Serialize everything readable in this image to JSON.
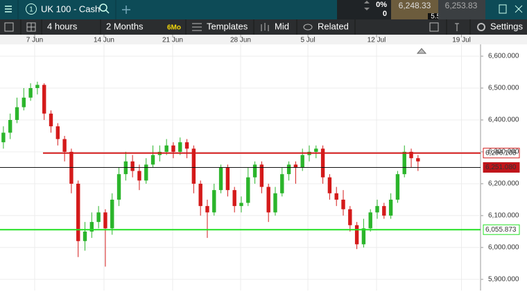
{
  "header": {
    "badge": "1",
    "instrument": "UK 100 - Cash",
    "change": "0%",
    "change_points": "0",
    "sell": "6,248.33",
    "spread": "5.50",
    "buy": "6,253.83"
  },
  "toolbar": {
    "interval": "4 hours",
    "range": "2 Months",
    "range_badge": "6Mo",
    "templates": "Templates",
    "price_type": "Mid",
    "related": "Related",
    "settings": "Settings"
  },
  "chart_data": {
    "type": "candlestick",
    "up_color": "#2bb52b",
    "down_color": "#d41a1a",
    "grid": true,
    "xlim": [
      -0.5,
      70.2
    ],
    "xticks": [
      {
        "value": 4.6,
        "label": "7 Jun"
      },
      {
        "value": 14.8,
        "label": "14 Jun"
      },
      {
        "value": 24.9,
        "label": "21 Jun"
      },
      {
        "value": 34.9,
        "label": "28 Jun"
      },
      {
        "value": 44.8,
        "label": "5 Jul"
      },
      {
        "value": 54.9,
        "label": "12 Jul"
      },
      {
        "value": 67.4,
        "label": "19 Jul"
      }
    ],
    "ylim": [
      5865,
      6637
    ],
    "yticks": [
      {
        "value": 5900,
        "label": "5,900.000"
      },
      {
        "value": 6000,
        "label": "6,000.000"
      },
      {
        "value": 6100,
        "label": "6,100.000"
      },
      {
        "value": 6200,
        "label": "6,200.000"
      },
      {
        "value": 6300,
        "label": "6,300.000"
      },
      {
        "value": 6400,
        "label": "6,400.000"
      },
      {
        "value": 6500,
        "label": "6,500.000"
      },
      {
        "value": 6600,
        "label": "6,600.000"
      }
    ],
    "open": [
      6330,
      6360,
      6400,
      6440,
      6470,
      6500,
      6510,
      6420,
      6380,
      6340,
      6300,
      6200,
      6020,
      6050,
      6080,
      6110,
      6060,
      6150,
      6230,
      6270,
      6240,
      6210,
      6260,
      6290,
      6300,
      6320,
      6300,
      6330,
      6310,
      6200,
      6130,
      6110,
      6180,
      6250,
      6180,
      6130,
      6140,
      6220,
      6260,
      6190,
      6110,
      6170,
      6230,
      6260,
      6250,
      6290,
      6300,
      6310,
      6220,
      6170,
      6150,
      6120,
      6070,
      6010,
      6060,
      6110,
      6130,
      6100,
      6150,
      6230,
      6300,
      6280
    ],
    "high": [
      6380,
      6420,
      6470,
      6500,
      6515,
      6520,
      6515,
      6430,
      6390,
      6350,
      6310,
      6210,
      6080,
      6110,
      6130,
      6120,
      6170,
      6250,
      6300,
      6290,
      6260,
      6280,
      6320,
      6320,
      6340,
      6330,
      6345,
      6340,
      6320,
      6210,
      6150,
      6200,
      6260,
      6260,
      6190,
      6160,
      6250,
      6270,
      6270,
      6200,
      6190,
      6250,
      6270,
      6270,
      6310,
      6320,
      6320,
      6320,
      6230,
      6190,
      6180,
      6130,
      6080,
      6090,
      6120,
      6150,
      6140,
      6170,
      6240,
      6320,
      6310,
      6290
    ],
    "low": [
      6310,
      6340,
      6390,
      6430,
      6460,
      6480,
      6400,
      6360,
      6320,
      6270,
      6170,
      5970,
      5990,
      6030,
      6060,
      5940,
      6040,
      6130,
      6210,
      6220,
      6180,
      6200,
      6250,
      6270,
      6290,
      6280,
      6290,
      6280,
      6170,
      6100,
      6030,
      6100,
      6170,
      6160,
      6110,
      6110,
      6130,
      6200,
      6170,
      6080,
      6100,
      6160,
      6210,
      6200,
      6240,
      6270,
      6280,
      6200,
      6150,
      6130,
      6100,
      6050,
      5995,
      6000,
      6050,
      6090,
      6090,
      6090,
      6140,
      6220,
      6250,
      6240
    ],
    "close": [
      6360,
      6400,
      6440,
      6470,
      6500,
      6510,
      6420,
      6380,
      6340,
      6300,
      6200,
      6020,
      6050,
      6080,
      6110,
      6060,
      6150,
      6230,
      6270,
      6240,
      6210,
      6260,
      6290,
      6300,
      6320,
      6300,
      6330,
      6310,
      6200,
      6130,
      6110,
      6180,
      6250,
      6180,
      6130,
      6140,
      6220,
      6260,
      6190,
      6110,
      6170,
      6230,
      6260,
      6250,
      6290,
      6300,
      6310,
      6220,
      6170,
      6150,
      6120,
      6070,
      6010,
      6060,
      6110,
      6130,
      6100,
      6150,
      6230,
      6300,
      6280,
      6270
    ],
    "levels": [
      {
        "value": 6296.105,
        "label": "6,296.105",
        "color": "#d41a1a"
      },
      {
        "value": 6251.08,
        "label": "6,251.080",
        "color": "#111111"
      },
      {
        "value": 6055.873,
        "label": "6,055.873",
        "color": "#22e022"
      }
    ]
  }
}
